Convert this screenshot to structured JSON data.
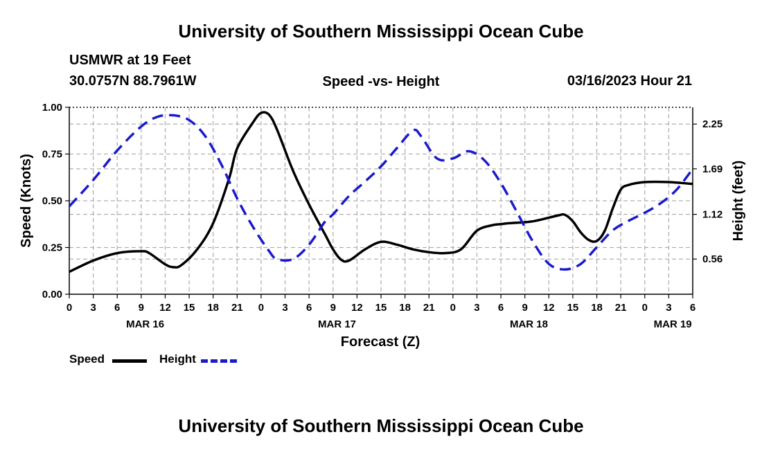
{
  "header": {
    "title": "University of Southern Mississippi Ocean Cube",
    "station": "USMWR at 19 Feet",
    "coords": "30.0757N  88.7961W",
    "datetime": "03/16/2023 Hour 21"
  },
  "footer": {
    "title": "University of Southern Mississippi Ocean Cube"
  },
  "legend": {
    "speed_label": "Speed",
    "height_label": "Height"
  },
  "colors": {
    "speed": "#000000",
    "height": "#1a1acc",
    "grid": "#b0b0b0"
  },
  "chart_data": {
    "type": "line",
    "title": "Speed -vs- Height",
    "xlabel": "Forecast (Z)",
    "ylabel": "Speed (Knots)",
    "y2label": "Height (feet)",
    "xlim": [
      0,
      78
    ],
    "ylim": [
      0,
      1
    ],
    "y2lim": [
      0.12,
      2.46
    ],
    "x_ticks": [
      0,
      3,
      6,
      9,
      12,
      15,
      18,
      21,
      24,
      27,
      30,
      33,
      36,
      39,
      42,
      45,
      48,
      51,
      54,
      57,
      60,
      63,
      66,
      69,
      72,
      75,
      78
    ],
    "x_tick_labels": [
      "0",
      "3",
      "6",
      "9",
      "12",
      "15",
      "18",
      "21",
      "0",
      "3",
      "6",
      "9",
      "12",
      "15",
      "18",
      "21",
      "0",
      "3",
      "6",
      "9",
      "12",
      "15",
      "18",
      "21",
      "0",
      "3",
      "6"
    ],
    "date_labels": [
      {
        "x": 9.5,
        "label": "MAR 16"
      },
      {
        "x": 33.5,
        "label": "MAR 17"
      },
      {
        "x": 57.5,
        "label": "MAR 18"
      },
      {
        "x": 75.5,
        "label": "MAR 19"
      }
    ],
    "y_ticks": [
      0,
      0.25,
      0.5,
      0.75,
      1.0
    ],
    "y_tick_labels": [
      "0.00",
      "0.25",
      "0.50",
      "0.75",
      "1.00"
    ],
    "y2_ticks": [
      0.56,
      1.12,
      1.69,
      2.25
    ],
    "y2_tick_labels": [
      "0.56",
      "1.12",
      "1.69",
      "2.25"
    ],
    "series": [
      {
        "name": "Speed",
        "axis": "left",
        "style": "solid",
        "x": [
          0,
          3,
          6,
          9,
          10,
          12,
          13,
          14,
          16,
          18,
          20,
          21,
          23,
          24,
          25,
          26,
          28,
          30,
          32,
          33,
          34,
          35,
          37,
          39,
          41,
          43,
          45,
          47,
          49,
          51,
          53,
          54,
          55,
          58,
          61,
          62,
          63,
          64,
          65,
          66,
          67,
          68,
          69,
          70,
          72,
          75,
          78
        ],
        "y": [
          0.12,
          0.18,
          0.22,
          0.23,
          0.22,
          0.16,
          0.145,
          0.155,
          0.24,
          0.38,
          0.62,
          0.78,
          0.92,
          0.97,
          0.96,
          0.88,
          0.66,
          0.48,
          0.32,
          0.24,
          0.185,
          0.18,
          0.24,
          0.28,
          0.265,
          0.24,
          0.225,
          0.22,
          0.24,
          0.34,
          0.37,
          0.375,
          0.38,
          0.39,
          0.42,
          0.425,
          0.39,
          0.33,
          0.29,
          0.285,
          0.34,
          0.46,
          0.56,
          0.585,
          0.6,
          0.6,
          0.59
        ]
      },
      {
        "name": "Height",
        "axis": "right",
        "style": "dashed",
        "x": [
          0,
          3,
          6,
          9,
          11,
          13,
          15,
          17,
          19,
          21,
          23,
          25,
          26,
          28,
          30,
          32,
          33,
          35,
          37,
          39,
          41,
          43,
          44,
          46,
          48,
          50,
          52,
          54,
          56,
          58,
          60,
          62,
          64,
          66,
          68,
          70,
          72,
          74,
          76,
          78
        ],
        "y": [
          1.22,
          1.55,
          1.92,
          2.22,
          2.34,
          2.36,
          2.3,
          2.1,
          1.75,
          1.32,
          0.96,
          0.66,
          0.56,
          0.56,
          0.74,
          1.03,
          1.12,
          1.35,
          1.53,
          1.72,
          1.95,
          2.17,
          2.1,
          1.82,
          1.82,
          1.91,
          1.79,
          1.51,
          1.15,
          0.78,
          0.5,
          0.43,
          0.5,
          0.71,
          0.92,
          1.04,
          1.14,
          1.26,
          1.43,
          1.69
        ]
      }
    ]
  }
}
